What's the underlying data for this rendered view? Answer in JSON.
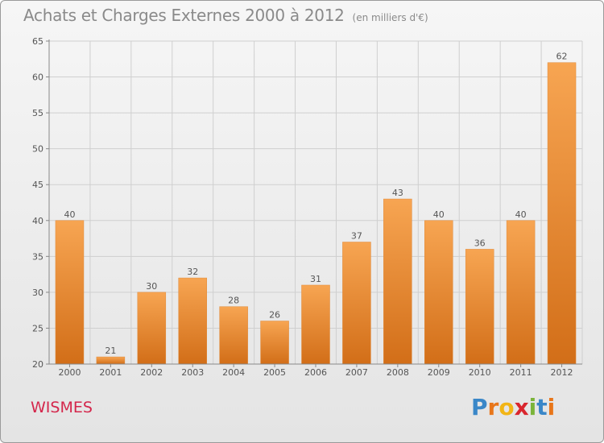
{
  "header": {
    "title": "Achats et Charges Externes 2000 à 2012",
    "subtitle": "(en milliers d'€)"
  },
  "footer": {
    "commune": "WISMES",
    "logo_letters": [
      "P",
      "r",
      "o",
      "x",
      "i",
      "t",
      "i"
    ],
    "logo_colors": [
      "#3a87c8",
      "#e8761a",
      "#f2b516",
      "#d9262e",
      "#7bb43a",
      "#3a87c8",
      "#e8761a"
    ]
  },
  "colors": {
    "bar_top": "#f7a552",
    "bar_bottom": "#d26e18",
    "grid": "#cfcfcf",
    "axis_text": "#555555",
    "commune": "#d4264b"
  },
  "chart_data": {
    "type": "bar",
    "title": "Achats et Charges Externes 2000 à 2012",
    "subtitle": "(en milliers d'€)",
    "xlabel": "",
    "ylabel": "",
    "categories": [
      "2000",
      "2001",
      "2002",
      "2003",
      "2004",
      "2005",
      "2006",
      "2007",
      "2008",
      "2009",
      "2010",
      "2011",
      "2012"
    ],
    "values": [
      40,
      21,
      30,
      32,
      28,
      26,
      31,
      37,
      43,
      40,
      36,
      40,
      62
    ],
    "data_labels": [
      "40",
      "21",
      "30",
      "32",
      "28",
      "26",
      "31",
      "37",
      "43",
      "40",
      "36",
      "40",
      "62"
    ],
    "ylim": [
      20,
      65
    ],
    "yticks": [
      20,
      25,
      30,
      35,
      40,
      45,
      50,
      55,
      60,
      65
    ],
    "ytick_labels": [
      "20",
      "25",
      "30",
      "35",
      "40",
      "45",
      "50",
      "55",
      "60",
      "65"
    ],
    "grid": true,
    "legend": "none"
  }
}
